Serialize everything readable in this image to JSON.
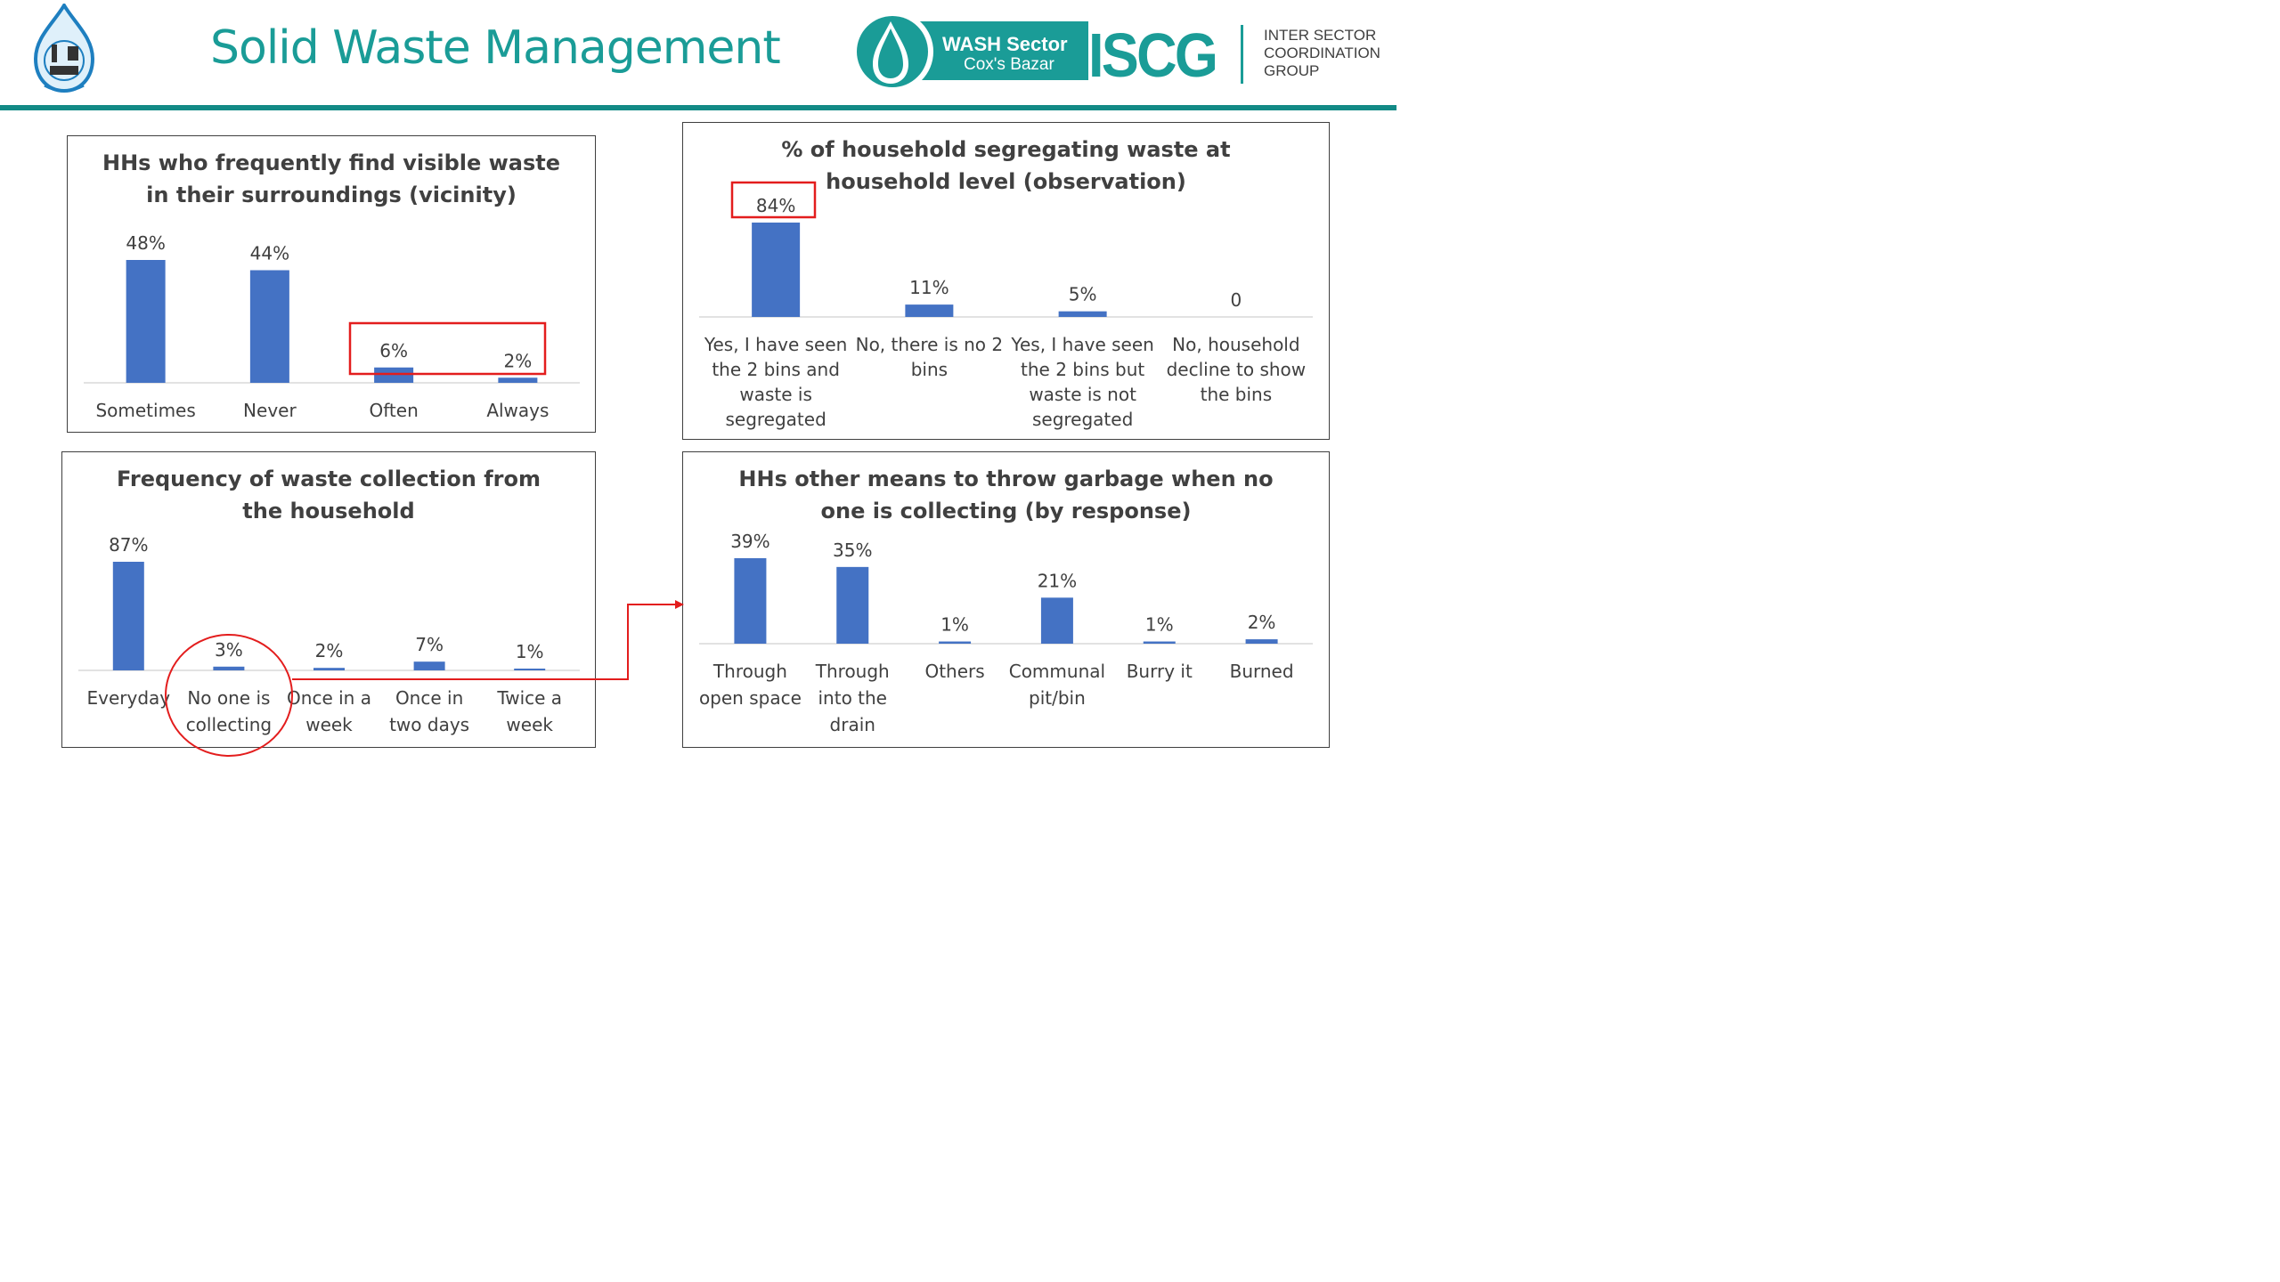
{
  "header": {
    "title": "Solid Waste Management",
    "wash_line1": "WASH Sector",
    "wash_line2": "Cox's Bazar",
    "iscg": "ISCG",
    "iscg_sub": [
      "INTER SECTOR",
      "COORDINATION",
      "GROUP"
    ],
    "colors": {
      "teal": "#1a9c97",
      "bar": "#4472c4",
      "highlight": "#e31d1d"
    }
  },
  "chart_data": [
    {
      "id": "visible-waste",
      "type": "bar",
      "title_lines": [
        "HHs who frequently find visible waste",
        "in their surroundings (vicinity)"
      ],
      "categories": [
        [
          "Sometimes"
        ],
        [
          "Never"
        ],
        [
          "Often"
        ],
        [
          "Always"
        ]
      ],
      "values": [
        48,
        44,
        6,
        2
      ],
      "labels": [
        "48%",
        "44%",
        "6%",
        "2%"
      ],
      "ylim": [
        0,
        48
      ],
      "highlight": "Often and Always"
    },
    {
      "id": "segregation",
      "type": "bar",
      "title_lines": [
        "% of household segregating waste at",
        "household level (observation)"
      ],
      "categories": [
        [
          "Yes, I have seen",
          "the 2 bins and",
          "waste is",
          "segregated"
        ],
        [
          "No, there is no 2",
          "bins"
        ],
        [
          "Yes, I have seen",
          "the 2 bins but",
          "waste is not",
          "segregated"
        ],
        [
          "No, household",
          "decline to show",
          "the bins"
        ]
      ],
      "values": [
        84,
        11,
        5,
        0
      ],
      "labels": [
        "84%",
        "11%",
        "5%",
        "0"
      ],
      "ylim": [
        0,
        84
      ],
      "highlight": "84%"
    },
    {
      "id": "collection-frequency",
      "type": "bar",
      "title_lines": [
        "Frequency of waste collection from",
        "the household"
      ],
      "categories": [
        [
          "Everyday"
        ],
        [
          "No one is",
          "collecting"
        ],
        [
          "Once in a",
          "week"
        ],
        [
          "Once in",
          "two days"
        ],
        [
          "Twice a",
          "week"
        ]
      ],
      "values": [
        87,
        3,
        2,
        7,
        1
      ],
      "labels": [
        "87%",
        "3%",
        "2%",
        "7%",
        "1%"
      ],
      "ylim": [
        0,
        87
      ],
      "highlight": "No one is collecting"
    },
    {
      "id": "other-means",
      "type": "bar",
      "title_lines": [
        "HHs other means to throw garbage when no",
        "one is collecting (by response)"
      ],
      "categories": [
        [
          "Through",
          "open space"
        ],
        [
          "Through",
          "into the",
          "drain"
        ],
        [
          "Others"
        ],
        [
          "Communal",
          "pit/bin"
        ],
        [
          "Burry it"
        ],
        [
          "Burned"
        ]
      ],
      "values": [
        39,
        35,
        1,
        21,
        1,
        2
      ],
      "labels": [
        "39%",
        "35%",
        "1%",
        "21%",
        "1%",
        "2%"
      ],
      "ylim": [
        0,
        39
      ]
    }
  ]
}
